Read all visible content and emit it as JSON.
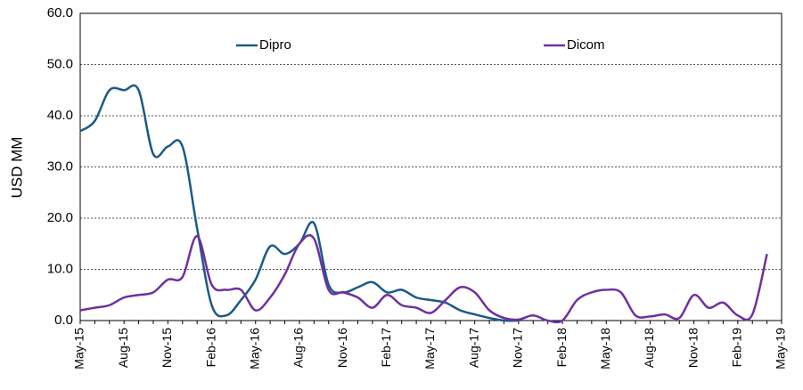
{
  "chart_data": {
    "type": "line",
    "ylabel": "USD MM",
    "categories": [
      "May-15",
      null,
      null,
      "Aug-15",
      null,
      null,
      "Nov-15",
      null,
      null,
      "Feb-16",
      null,
      null,
      "May-16",
      null,
      null,
      "Aug-16",
      null,
      null,
      "Nov-16",
      null,
      null,
      "Feb-17",
      null,
      null,
      "May-17",
      null,
      null,
      "Aug-17",
      null,
      null,
      "Nov-17",
      null,
      null,
      "Feb-18",
      null,
      null,
      "May-18",
      null,
      null,
      "Aug-18",
      null,
      null,
      "Nov-18",
      null,
      null,
      "Feb-19",
      null,
      null,
      "May-19"
    ],
    "series": [
      {
        "name": "Dipro",
        "color": "#1b5a86",
        "values": [
          37,
          39,
          45,
          45,
          45,
          32.5,
          34,
          34,
          18,
          3,
          1,
          4,
          8,
          14.5,
          13,
          15,
          19,
          7,
          5.5,
          6.5,
          7.5,
          5.5,
          6,
          4.5,
          4,
          3.5,
          2,
          1.2,
          0.5,
          0,
          0,
          null,
          null,
          null,
          null,
          null,
          null,
          null,
          null,
          null,
          null,
          null,
          null,
          null,
          null,
          null,
          null,
          null,
          null
        ]
      },
      {
        "name": "Dicom",
        "color": "#7030a0",
        "values": [
          2,
          2.5,
          3,
          4.5,
          5,
          5.5,
          8,
          8.5,
          16.5,
          7,
          6,
          6,
          2,
          4.5,
          9,
          15,
          16,
          6,
          5.5,
          4.5,
          2.5,
          5,
          3,
          2.5,
          1.5,
          4,
          6.5,
          5.5,
          2,
          0.5,
          0.2,
          1,
          0,
          0,
          4,
          5.5,
          6,
          5.5,
          1,
          0.8,
          1.2,
          0.5,
          5,
          2.5,
          3.5,
          1,
          1.2,
          13,
          null
        ]
      }
    ],
    "ylim": [
      0,
      60
    ],
    "yticks": [
      {
        "value": 0,
        "label": "0.0"
      },
      {
        "value": 10,
        "label": "10.0"
      },
      {
        "value": 20,
        "label": "20.0"
      },
      {
        "value": 30,
        "label": "30.0"
      },
      {
        "value": 40,
        "label": "40.0"
      },
      {
        "value": 50,
        "label": "50.0"
      },
      {
        "value": 60,
        "label": "60.0"
      }
    ],
    "grid": true
  }
}
